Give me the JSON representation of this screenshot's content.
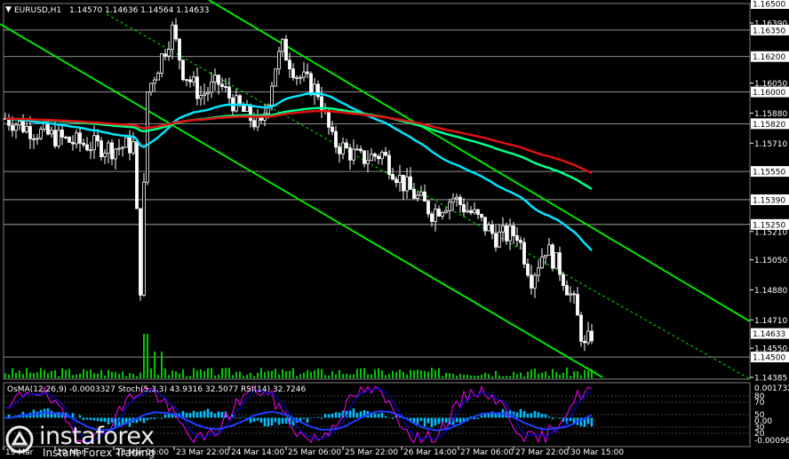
{
  "header": {
    "symbol": "EURUSD,H1",
    "ohlc": "1.14570 1.14636 1.14564 1.14633"
  },
  "subwindow": {
    "indicators": "OsMA(12,26,9) -0.0003327   Stoch(5,3,3) 43.9316 32.5077   RSI(14) 32.7246",
    "scale_top": "0.0017324",
    "scale_bottom": "-0.000962",
    "levels": [
      "70",
      "50",
      "30",
      "20",
      "0.00",
      "80"
    ]
  },
  "price_axis": {
    "labels": [
      "1.16500",
      "1.16390",
      "1.16350",
      "1.16200",
      "1.16050",
      "1.16000",
      "1.15880",
      "1.15820",
      "1.15710",
      "1.15550",
      "1.15390",
      "1.15250",
      "1.15210",
      "1.15050",
      "1.14880",
      "1.14710",
      "1.14633",
      "1.14550",
      "1.14500",
      "1.14385"
    ],
    "highlighted": [
      "1.16500",
      "1.16350",
      "1.16200",
      "1.16000",
      "1.15820",
      "1.15550",
      "1.15390",
      "1.15250",
      "1.14500"
    ],
    "current": "1.14633"
  },
  "time_axis": {
    "labels": [
      "19 Mar",
      "20 Mar",
      "23 Mar 06:00",
      "23 Mar 22:00",
      "24 Mar 14:00",
      "25 Mar 06:00",
      "25 Mar 22:00",
      "26 Mar 14:00",
      "27 Mar 06:00",
      "27 Mar 22:00",
      "30 Mar 15:00"
    ]
  },
  "watermark": {
    "brand": "instaforex",
    "tagline": "Instant Forex Trading"
  },
  "colors": {
    "background": "#000000",
    "candles": "#ffffff",
    "channel": "#00e600",
    "ema_fast": "#00e5ff",
    "ema_mid": "#00ff88",
    "ema_slow": "#e01010",
    "grid_level": "#ffffff",
    "volume": "#00c800",
    "osma": "#00bfff",
    "stoch_main": "#0000ff",
    "stoch_signal": "#ff00ff"
  },
  "chart_data": {
    "type": "candlestick",
    "symbol": "EURUSD",
    "timeframe": "H1",
    "ylim": [
      1.14385,
      1.165
    ],
    "levels": [
      1.1635,
      1.162,
      1.16,
      1.1582,
      1.1555,
      1.1539,
      1.1525,
      1.145
    ],
    "last_price": 1.14633
  }
}
